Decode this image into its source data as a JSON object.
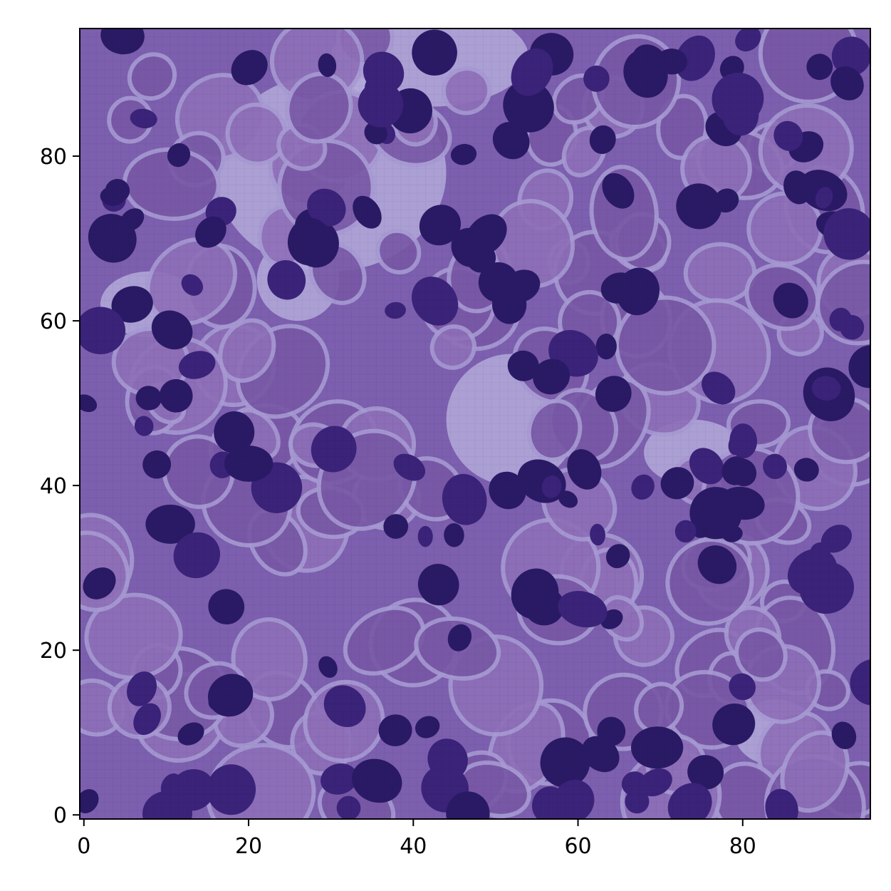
{
  "image": {
    "description_kind": "histology-tile",
    "palette": {
      "nucleus_dark": "#2a1a66",
      "nucleus": "#3a2379",
      "cytoplasm": "#7858a6",
      "cytoplasm_light": "#8e6fb8",
      "stroma": "#a79ad3",
      "background_light": "#b4aadb"
    },
    "pixel_extent": {
      "width": 96,
      "height": 96
    }
  },
  "chart_data": {
    "type": "image",
    "x_axis": {
      "ticks": [
        0,
        20,
        40,
        60,
        80
      ],
      "range": [
        -0.5,
        95.5
      ]
    },
    "y_axis": {
      "ticks": [
        0,
        20,
        40,
        60,
        80
      ],
      "range": [
        95.5,
        -0.5
      ],
      "inverted": true
    },
    "grid": false
  }
}
